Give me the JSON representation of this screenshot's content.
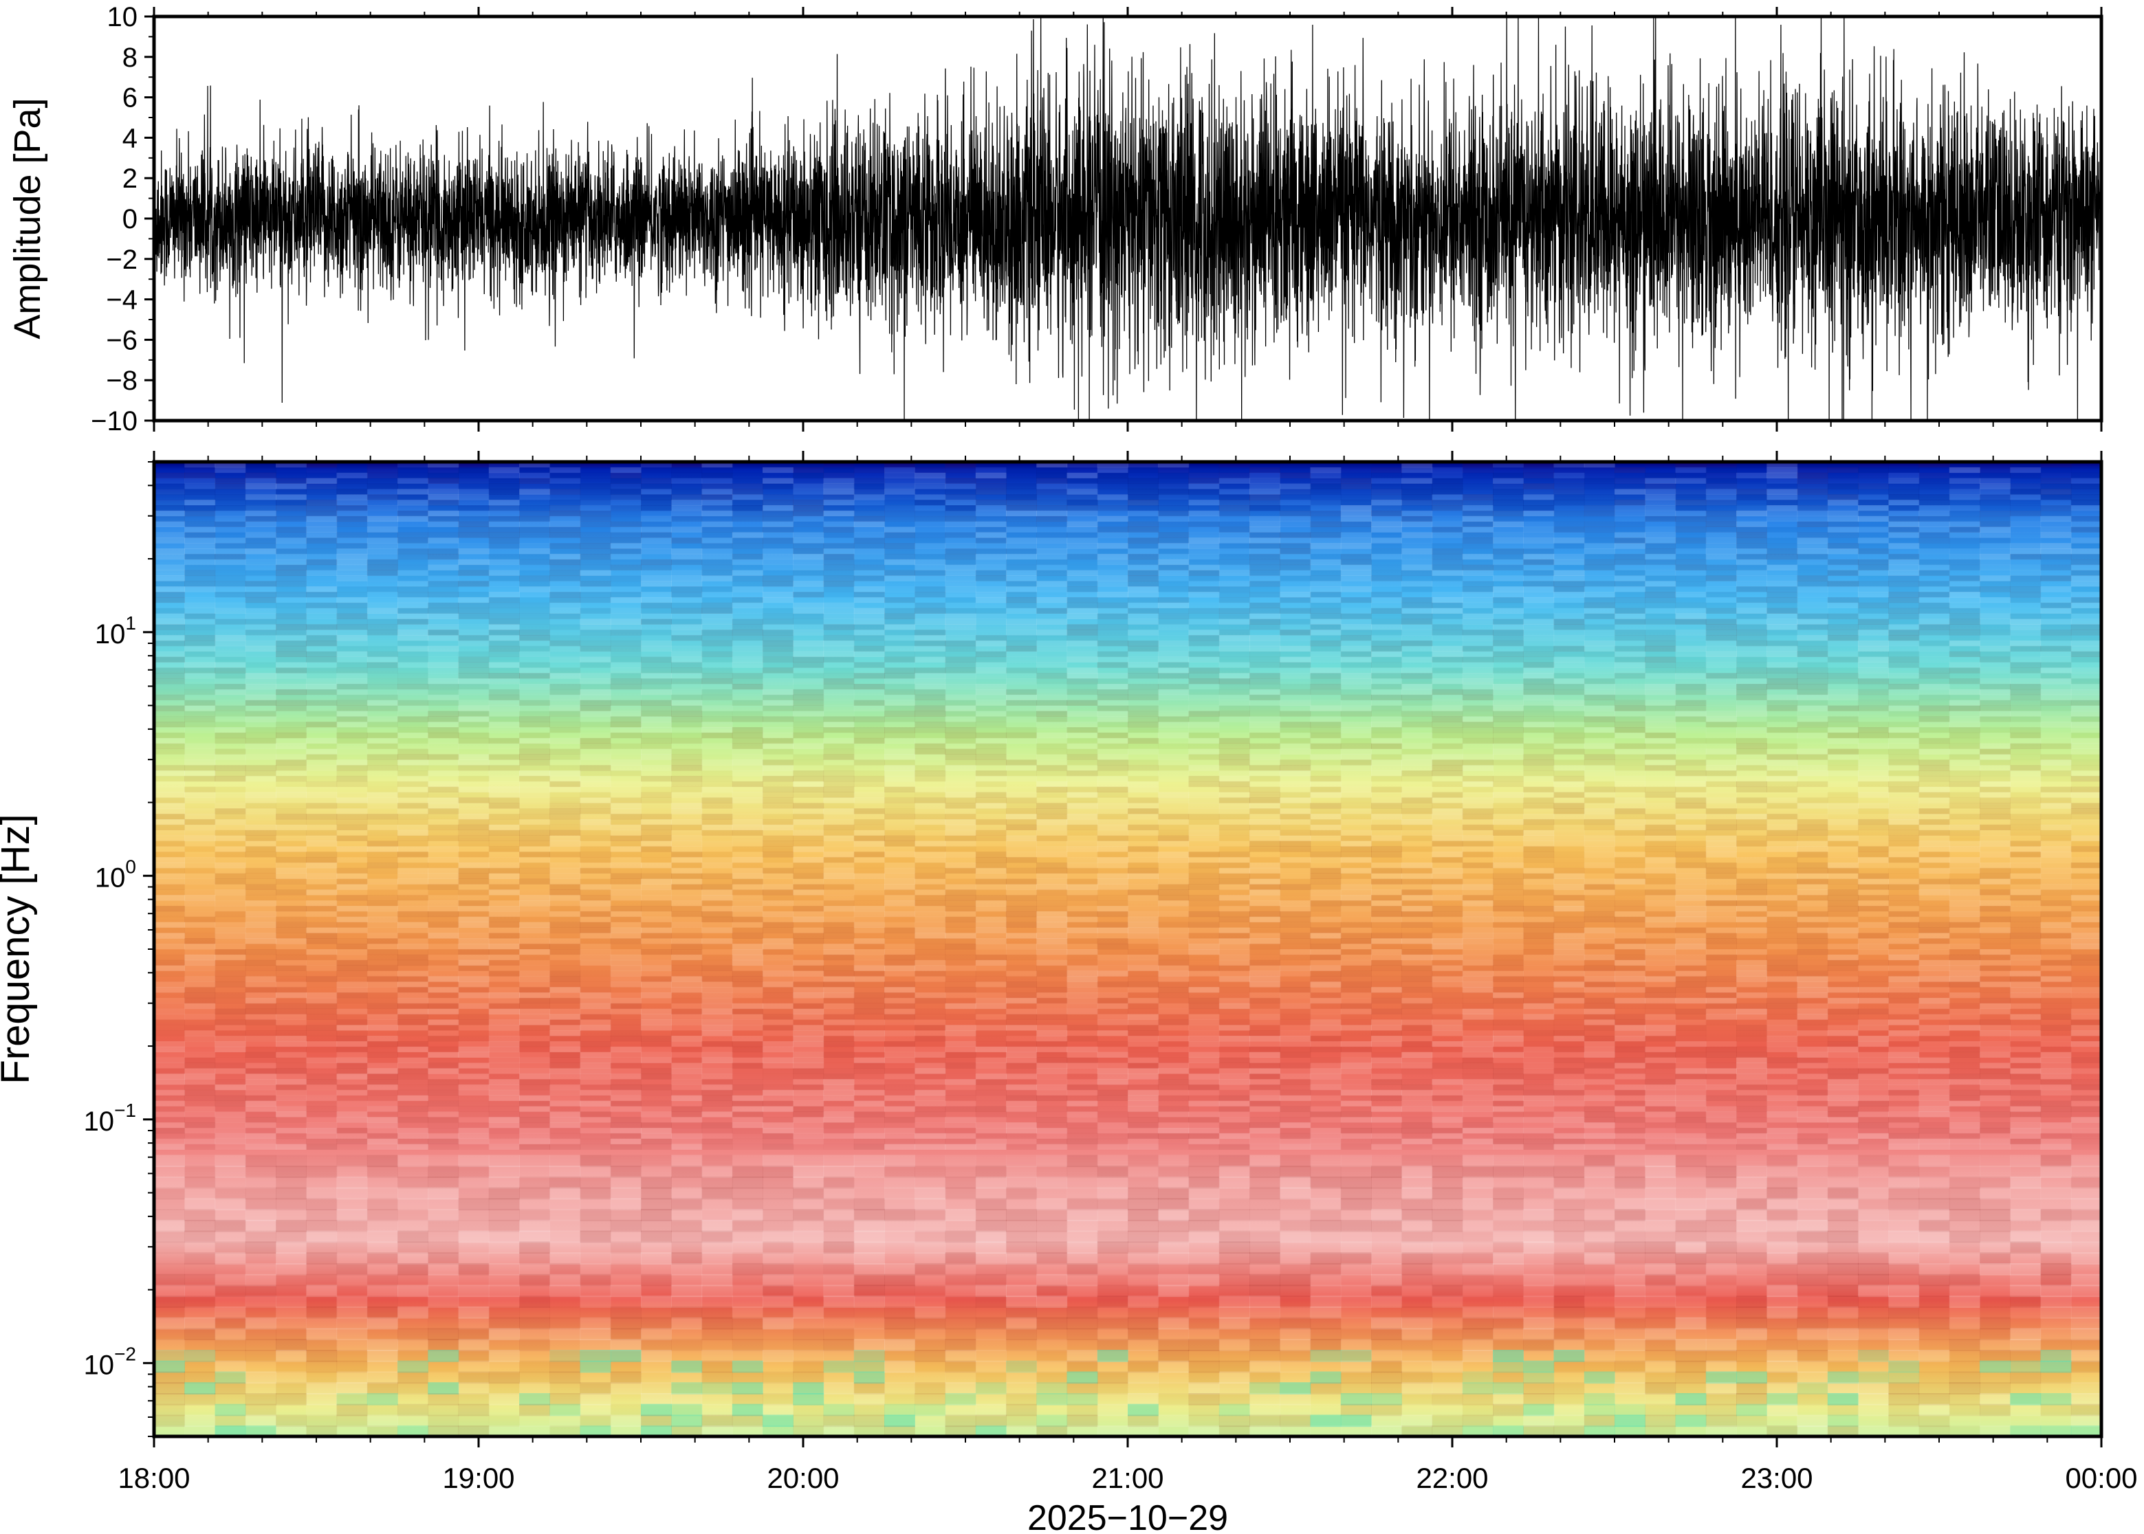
{
  "chart_data": [
    {
      "type": "line",
      "panel": "waveform",
      "ylabel": "Amplitude [Pa]",
      "ylim": [
        -10,
        10
      ],
      "yticks": [
        10,
        8,
        6,
        4,
        2,
        0,
        -2,
        -4,
        -6,
        -8,
        -10
      ],
      "ytick_labels": [
        "10",
        "8",
        "6",
        "4",
        "2",
        "0",
        "−2",
        "−4",
        "−6",
        "−8",
        "−10"
      ],
      "xlim": [
        "18:00",
        "00:00"
      ],
      "line_color": "#000000",
      "envelope": {
        "time_hours": [
          18.0,
          18.5,
          19.0,
          19.5,
          19.95,
          20.0,
          20.5,
          20.9,
          21.0,
          21.5,
          21.8,
          22.0,
          22.5,
          23.0,
          23.5,
          24.0
        ],
        "typical_amplitude_pa": [
          2.2,
          2.5,
          2.3,
          2.2,
          2.5,
          3.2,
          3.6,
          4.6,
          4.8,
          4.4,
          3.6,
          3.8,
          4.2,
          4.3,
          4.0,
          3.4
        ]
      },
      "grid": false
    },
    {
      "type": "heatmap",
      "panel": "spectrogram",
      "ylabel": "Frequency [Hz]",
      "yscale": "log",
      "ylim": [
        0.005,
        50
      ],
      "ytick_labels": [
        {
          "value": 10,
          "base": "10",
          "exp": "1"
        },
        {
          "value": 1,
          "base": "10",
          "exp": "0"
        },
        {
          "value": 0.1,
          "base": "10",
          "exp": "−1"
        },
        {
          "value": 0.01,
          "base": "10",
          "exp": "−2"
        }
      ],
      "colormap": [
        "#00007a",
        "#0033cc",
        "#1f9bf2",
        "#55d6e8",
        "#9cf0a8",
        "#e8f590",
        "#f8c85a",
        "#f4934a",
        "#ee5a50",
        "#f29a9a",
        "#f6c6c6"
      ],
      "grid": false
    }
  ],
  "shared_x_axis": {
    "xlabel": "2025−10−29",
    "tick_labels": [
      "18:00",
      "19:00",
      "20:00",
      "21:00",
      "22:00",
      "23:00",
      "00:00"
    ]
  }
}
